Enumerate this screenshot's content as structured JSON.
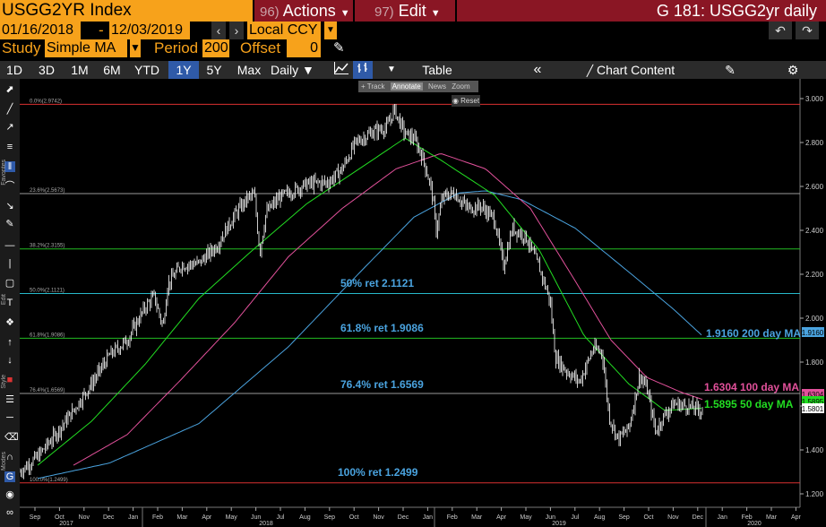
{
  "titlebar": {
    "ticker": "USGG2YR Index",
    "actions_num": "96)",
    "actions_label": "Actions",
    "edit_num": "97)",
    "edit_label": "Edit",
    "right_title": "G 181: USGG2yr daily"
  },
  "range": {
    "start": "01/16/2018",
    "sep": "-",
    "end": "12/03/2019",
    "currency": "Local CCY"
  },
  "study": {
    "study_label": "Study",
    "study_value": "Simple MA",
    "period_label": "Period",
    "period_value": "200",
    "offset_label": "Offset",
    "offset_value": "0"
  },
  "toolbar": {
    "periods": [
      "1D",
      "3D",
      "1M",
      "6M",
      "YTD",
      "1Y",
      "5Y",
      "Max"
    ],
    "selected_period": "1Y",
    "frequency": "Daily",
    "table_label": "Table",
    "chart_content_label": "Chart Content"
  },
  "mini_toolbar": {
    "track": "Track",
    "annotate": "Annotate",
    "news": "News",
    "zoom": "Zoom",
    "reset": "Reset"
  },
  "side_labels": {
    "favorites": "Favorites",
    "edit": "Edit",
    "style": "Style",
    "modes": "Modes"
  },
  "chart_data": {
    "type": "line",
    "title": "",
    "ylim": [
      1.2,
      3.0
    ],
    "y_ticks": [
      "1.200",
      "1.400",
      "1.600",
      "1.800",
      "2.000",
      "2.200",
      "2.400",
      "2.600",
      "2.800",
      "3.000"
    ],
    "x_month_ticks": [
      "Sep",
      "Oct",
      "Nov",
      "Dec",
      "Jan",
      "Feb",
      "Mar",
      "Apr",
      "May",
      "Jun",
      "Jul",
      "Aug",
      "Sep",
      "Oct",
      "Nov",
      "Dec",
      "Jan",
      "Feb",
      "Mar",
      "Apr",
      "May",
      "Jun",
      "Jul",
      "Aug",
      "Sep",
      "Oct",
      "Nov",
      "Dec",
      "Jan",
      "Feb",
      "Mar",
      "Apr"
    ],
    "x_year_labels": [
      "2017",
      "2018",
      "2019",
      "2020"
    ],
    "fib_levels": [
      {
        "pct": "0.0%",
        "value": 2.9742,
        "label": "0.0%(2.9742)",
        "color": "#d93030"
      },
      {
        "pct": "23.6%",
        "value": 2.5673,
        "label": "23.6%(2.5673)",
        "color": "#9a9a9a"
      },
      {
        "pct": "38.2%",
        "value": 2.3155,
        "label": "38.2%(2.3155)",
        "color": "#22bb22"
      },
      {
        "pct": "50.0%",
        "value": 2.1121,
        "label": "50.0%(2.1121)",
        "color": "#27b9c9"
      },
      {
        "pct": "61.8%",
        "value": 1.9086,
        "label": "61.8%(1.9086)",
        "color": "#22bb22"
      },
      {
        "pct": "76.4%",
        "value": 1.6569,
        "label": "76.4%(1.6569)",
        "color": "#9a9a9a"
      },
      {
        "pct": "100.0%",
        "value": 1.2499,
        "label": "100.0%(1.2499)",
        "color": "#d93030"
      }
    ],
    "annotations": [
      {
        "text": "50% ret 2.1121",
        "color": "#4aa3df"
      },
      {
        "text": "61.8% ret 1.9086",
        "color": "#4aa3df"
      },
      {
        "text": "76.4% ret 1.6569",
        "color": "#4aa3df"
      },
      {
        "text": "100% ret 1.2499",
        "color": "#4aa3df"
      }
    ],
    "legend": [
      {
        "text": "1.9160 200 day MA",
        "color": "#4aa3df"
      },
      {
        "text": "1.6304 100 day MA",
        "color": "#e2519b"
      },
      {
        "text": "1.5895 50 day MA",
        "color": "#22dd22"
      }
    ],
    "last_values": [
      {
        "value": "1.9160",
        "color": "#4aa3df"
      },
      {
        "value": "1.6304",
        "color": "#e2519b"
      },
      {
        "value": "1.5895",
        "color": "#22dd22"
      },
      {
        "value": "1.5801",
        "color": "#ffffff"
      }
    ],
    "price_anchors": [
      [
        0,
        1.3
      ],
      [
        20,
        1.37
      ],
      [
        40,
        1.47
      ],
      [
        60,
        1.58
      ],
      [
        80,
        1.7
      ],
      [
        100,
        1.83
      ],
      [
        120,
        1.9
      ],
      [
        140,
        2.05
      ],
      [
        150,
        2.1
      ],
      [
        160,
        1.96
      ],
      [
        165,
        2.15
      ],
      [
        180,
        2.24
      ],
      [
        200,
        2.25
      ],
      [
        220,
        2.33
      ],
      [
        240,
        2.47
      ],
      [
        255,
        2.55
      ],
      [
        262,
        2.56
      ],
      [
        268,
        2.3
      ],
      [
        275,
        2.48
      ],
      [
        290,
        2.55
      ],
      [
        320,
        2.61
      ],
      [
        345,
        2.62
      ],
      [
        360,
        2.68
      ],
      [
        375,
        2.8
      ],
      [
        395,
        2.85
      ],
      [
        410,
        2.87
      ],
      [
        418,
        2.95
      ],
      [
        430,
        2.84
      ],
      [
        440,
        2.82
      ],
      [
        450,
        2.73
      ],
      [
        460,
        2.58
      ],
      [
        465,
        2.4
      ],
      [
        472,
        2.55
      ],
      [
        485,
        2.57
      ],
      [
        500,
        2.5
      ],
      [
        515,
        2.51
      ],
      [
        530,
        2.45
      ],
      [
        540,
        2.24
      ],
      [
        550,
        2.41
      ],
      [
        565,
        2.37
      ],
      [
        580,
        2.23
      ],
      [
        592,
        2.08
      ],
      [
        598,
        1.82
      ],
      [
        610,
        1.76
      ],
      [
        625,
        1.71
      ],
      [
        640,
        1.86
      ],
      [
        650,
        1.85
      ],
      [
        658,
        1.55
      ],
      [
        668,
        1.45
      ],
      [
        680,
        1.5
      ],
      [
        692,
        1.74
      ],
      [
        700,
        1.68
      ],
      [
        710,
        1.48
      ],
      [
        718,
        1.55
      ],
      [
        730,
        1.61
      ],
      [
        745,
        1.6
      ],
      [
        762,
        1.58
      ]
    ],
    "ma50_anchors": [
      [
        20,
        1.33
      ],
      [
        80,
        1.53
      ],
      [
        140,
        1.79
      ],
      [
        200,
        2.09
      ],
      [
        260,
        2.31
      ],
      [
        320,
        2.52
      ],
      [
        390,
        2.71
      ],
      [
        430,
        2.82
      ],
      [
        470,
        2.72
      ],
      [
        530,
        2.56
      ],
      [
        580,
        2.31
      ],
      [
        630,
        1.92
      ],
      [
        680,
        1.7
      ],
      [
        720,
        1.58
      ],
      [
        762,
        1.59
      ]
    ],
    "ma100_anchors": [
      [
        60,
        1.33
      ],
      [
        120,
        1.47
      ],
      [
        180,
        1.72
      ],
      [
        240,
        1.98
      ],
      [
        300,
        2.28
      ],
      [
        360,
        2.5
      ],
      [
        420,
        2.68
      ],
      [
        470,
        2.75
      ],
      [
        520,
        2.68
      ],
      [
        570,
        2.5
      ],
      [
        620,
        2.17
      ],
      [
        660,
        1.9
      ],
      [
        700,
        1.73
      ],
      [
        740,
        1.66
      ],
      [
        762,
        1.63
      ]
    ],
    "ma200_anchors": [
      [
        20,
        1.27
      ],
      [
        100,
        1.34
      ],
      [
        200,
        1.52
      ],
      [
        300,
        1.87
      ],
      [
        380,
        2.21
      ],
      [
        440,
        2.46
      ],
      [
        490,
        2.57
      ],
      [
        520,
        2.58
      ],
      [
        560,
        2.54
      ],
      [
        620,
        2.41
      ],
      [
        680,
        2.21
      ],
      [
        730,
        2.04
      ],
      [
        762,
        1.92
      ]
    ]
  }
}
